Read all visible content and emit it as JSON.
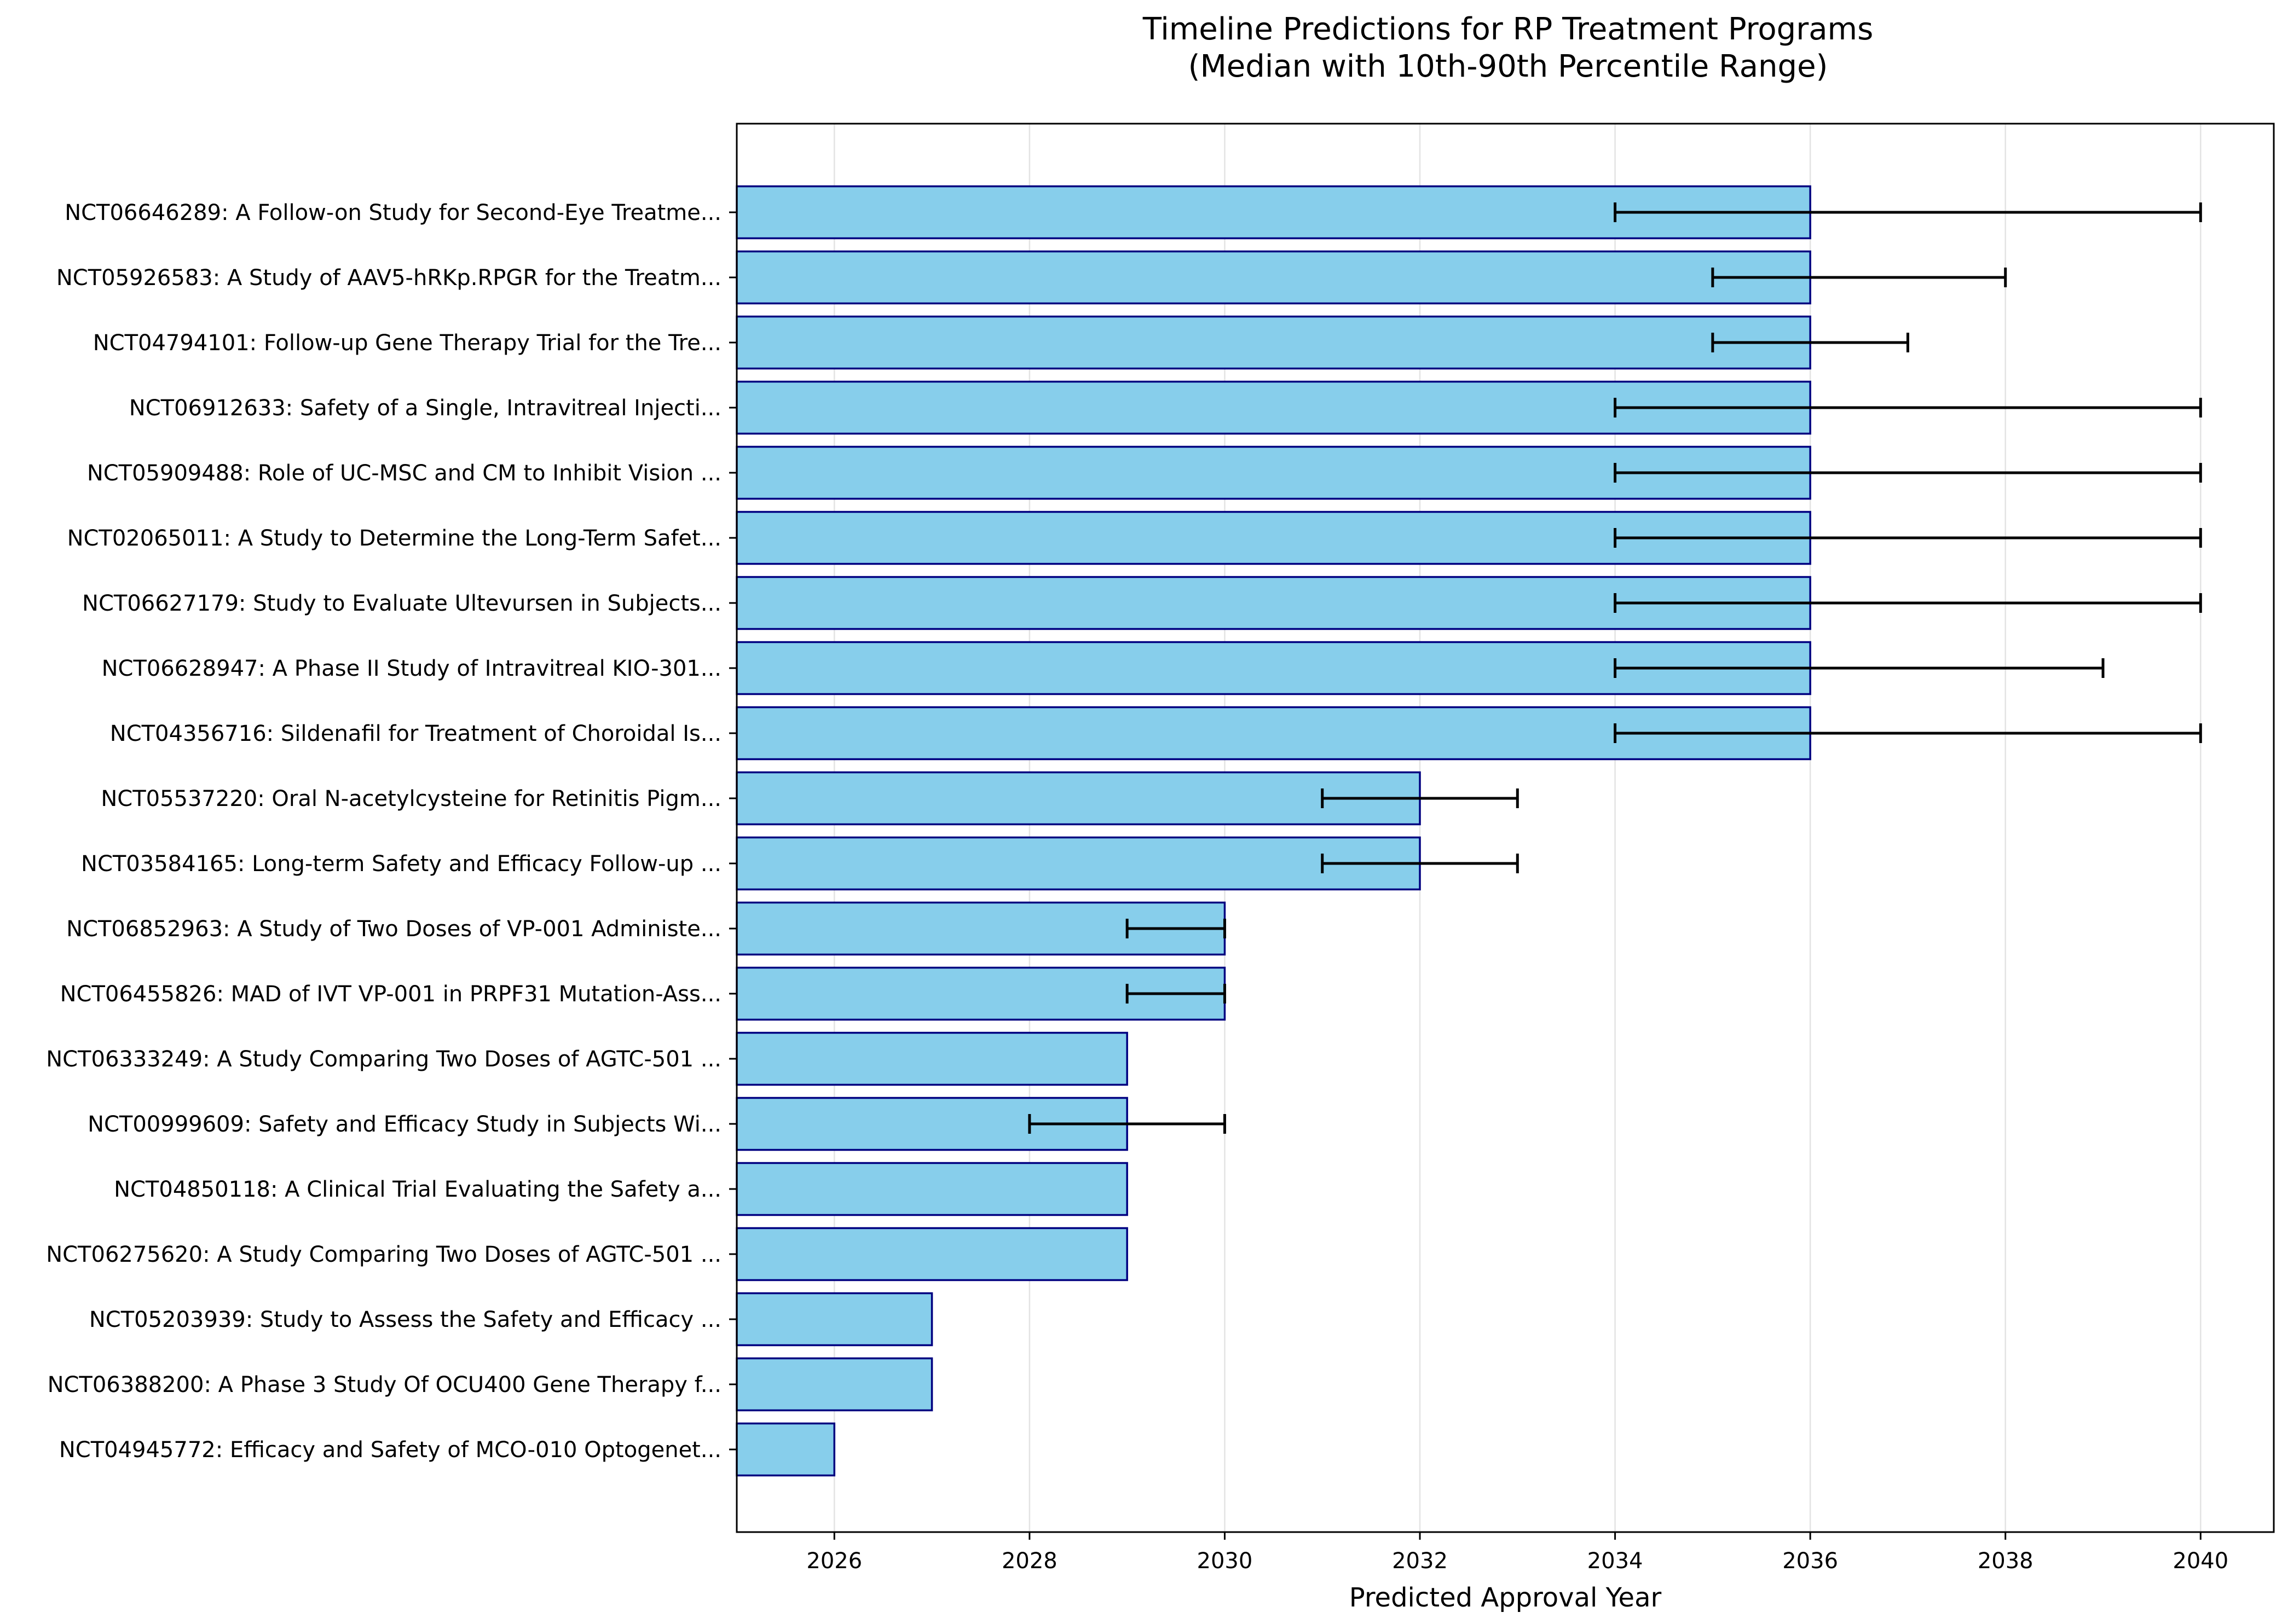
{
  "chart_data": {
    "type": "bar",
    "orientation": "horizontal",
    "title": "Timeline Predictions for RP Treatment Programs",
    "subtitle": "(Median with 10th-90th Percentile Range)",
    "xlabel": "Predicted Approval Year",
    "ylabel": "",
    "xlim": [
      2025,
      2040.75
    ],
    "xticks": [
      2026,
      2028,
      2030,
      2032,
      2034,
      2036,
      2038,
      2040
    ],
    "grid": "x",
    "categories": [
      "NCT06646289: A Follow-on Study for Second-Eye Treatme...",
      "NCT05926583: A Study of AAV5-hRKp.RPGR for the Treatm...",
      "NCT04794101: Follow-up Gene Therapy Trial for the Tre...",
      "NCT06912633: Safety of a Single, Intravitreal Injecti...",
      "NCT05909488: Role of UC-MSC and CM to Inhibit Vision ...",
      "NCT02065011: A Study to Determine the Long-Term Safet...",
      "NCT06627179: Study to Evaluate Ultevursen in Subjects...",
      "NCT06628947: A Phase II Study of Intravitreal KIO-301...",
      "NCT04356716: Sildenafil for Treatment of Choroidal Is...",
      "NCT05537220: Oral N-acetylcysteine for Retinitis Pigm...",
      "NCT03584165: Long-term Safety and Efficacy Follow-up ...",
      "NCT06852963: A Study of Two Doses of VP-001 Administe...",
      "NCT06455826: MAD of IVT VP-001 in PRPF31 Mutation-Ass...",
      "NCT06333249: A Study Comparing Two Doses of AGTC-501 ...",
      "NCT00999609: Safety and Efficacy Study in Subjects Wi...",
      "NCT04850118: A Clinical Trial Evaluating the Safety a...",
      "NCT06275620: A Study Comparing Two Doses of AGTC-501 ...",
      "NCT05203939: Study to Assess the Safety and Efficacy ...",
      "NCT06388200: A Phase 3 Study Of OCU400 Gene Therapy f...",
      "NCT04945772: Efficacy and Safety of MCO-010 Optogenet..."
    ],
    "median": [
      2036,
      2036,
      2036,
      2036,
      2036,
      2036,
      2036,
      2036,
      2036,
      2032,
      2032,
      2030,
      2030,
      2029,
      2029,
      2029,
      2029,
      2027,
      2027,
      2026
    ],
    "p10": [
      2034,
      2035,
      2035,
      2034,
      2034,
      2034,
      2034,
      2034,
      2034,
      2031,
      2031,
      2029,
      2029,
      2029,
      2028,
      2029,
      2029,
      2027,
      2027,
      2026
    ],
    "p90": [
      2040,
      2038,
      2037,
      2040,
      2040,
      2040,
      2040,
      2039,
      2040,
      2033,
      2033,
      2030,
      2030,
      2029,
      2030,
      2029,
      2029,
      2027,
      2027,
      2026
    ],
    "colors": {
      "bar_fill": "#87ceeb",
      "bar_edge": "#000080",
      "error": "#000000"
    }
  }
}
